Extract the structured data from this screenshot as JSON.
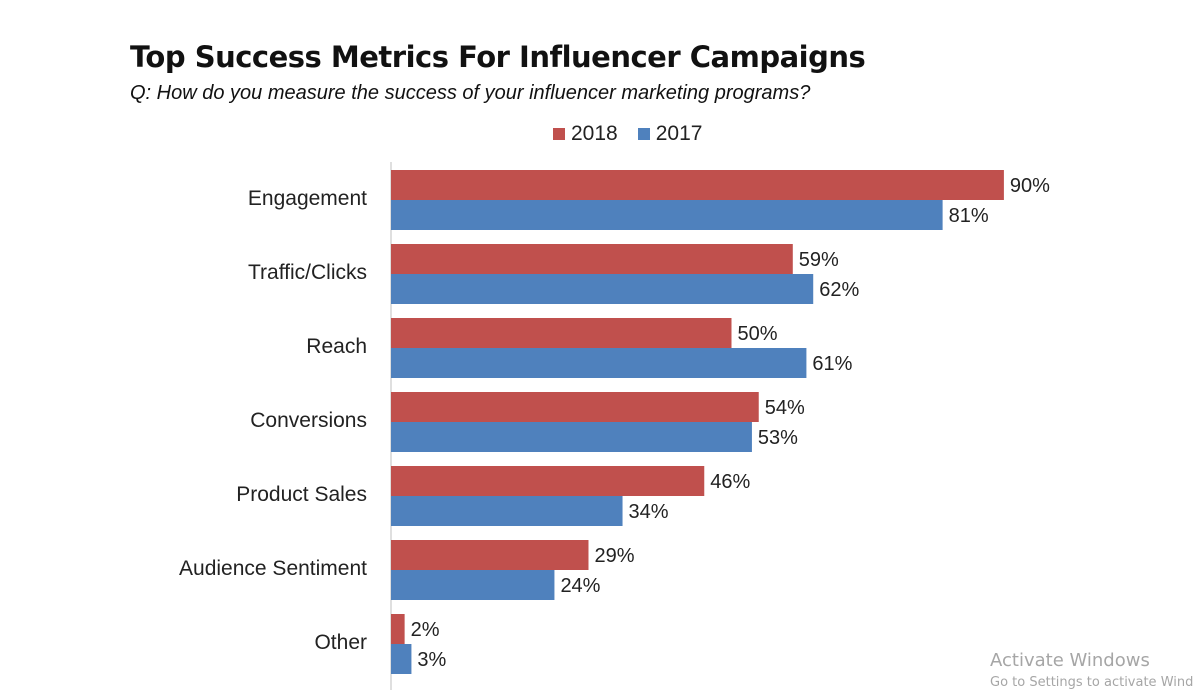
{
  "chart_data": {
    "type": "bar",
    "orientation": "horizontal",
    "title": "Top Success Metrics For Influencer Campaigns",
    "subtitle": "Q: How do you measure the success of your influencer marketing programs?",
    "categories": [
      "Engagement",
      "Traffic/Clicks",
      "Reach",
      "Conversions",
      "Product Sales",
      "Audience Sentiment",
      "Other"
    ],
    "series": [
      {
        "name": "2018",
        "color": "#c0504d",
        "values": [
          90,
          59,
          50,
          54,
          46,
          29,
          2
        ],
        "labels": [
          "90%",
          "59%",
          "50%",
          "54%",
          "46%",
          "29%",
          "2%"
        ]
      },
      {
        "name": "2017",
        "color": "#4f81bd",
        "values": [
          81,
          62,
          61,
          53,
          34,
          24,
          3
        ],
        "labels": [
          "81%",
          "62%",
          "61%",
          "53%",
          "34%",
          "24%",
          "3%"
        ]
      }
    ],
    "xlim": [
      0,
      100
    ],
    "grid": false,
    "legend_position": "top"
  },
  "watermark": {
    "title": "Activate Windows",
    "subtitle": "Go to Settings to activate Wind"
  }
}
